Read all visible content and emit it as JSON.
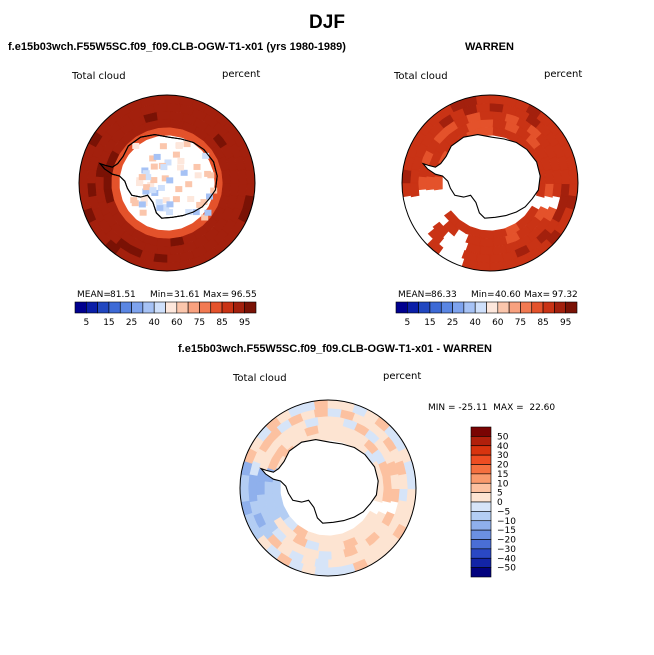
{
  "figure_title": "DJF",
  "chart_data": [
    {
      "type": "heatmap",
      "projection": "south-polar-stereographic",
      "title": "f.e15b03wch.F55W5SC.f09_f09.CLB-OGW-T1-x01 (yrs 1980-1989)",
      "field": "Total cloud",
      "units": "percent",
      "stats": {
        "mean": "81.51",
        "min": "31.61",
        "max": "96.55",
        "mean_label": "MEAN=",
        "min_label": "Min=",
        "max_label": "Max="
      },
      "levels": [
        5,
        10,
        15,
        20,
        25,
        30,
        40,
        50,
        60,
        70,
        75,
        80,
        85,
        90,
        95
      ],
      "tick_labels": [
        "5",
        "15",
        "25",
        "40",
        "60",
        "75",
        "85",
        "95"
      ],
      "colors": [
        "#00008f",
        "#0a1ea8",
        "#2147c0",
        "#3d6ad6",
        "#5a86e3",
        "#7ea3ee",
        "#a6c2f5",
        "#cfe0fb",
        "#fde7dc",
        "#fbc6ac",
        "#f8a17f",
        "#f27a52",
        "#e4522b",
        "#c93315",
        "#a3200d",
        "#7a1205"
      ]
    },
    {
      "type": "heatmap",
      "projection": "south-polar-stereographic",
      "title": "WARREN",
      "field": "Total cloud",
      "units": "percent",
      "stats": {
        "mean": "86.33",
        "min": "40.60",
        "max": "97.32",
        "mean_label": "MEAN=",
        "min_label": "Min=",
        "max_label": "Max="
      },
      "levels": [
        5,
        10,
        15,
        20,
        25,
        30,
        40,
        50,
        60,
        70,
        75,
        80,
        85,
        90,
        95
      ],
      "tick_labels": [
        "5",
        "15",
        "25",
        "40",
        "60",
        "75",
        "85",
        "95"
      ],
      "colors": [
        "#00008f",
        "#0a1ea8",
        "#2147c0",
        "#3d6ad6",
        "#5a86e3",
        "#7ea3ee",
        "#a6c2f5",
        "#cfe0fb",
        "#fde7dc",
        "#fbc6ac",
        "#f8a17f",
        "#f27a52",
        "#e4522b",
        "#c93315",
        "#a3200d",
        "#7a1205"
      ]
    },
    {
      "type": "heatmap",
      "projection": "south-polar-stereographic",
      "title": "f.e15b03wch.F55W5SC.f09_f09.CLB-OGW-T1-x01 - WARREN",
      "field": "Total cloud",
      "units": "percent",
      "stats_text": "MIN = -25.11  MAX =  22.60",
      "levels": [
        -50,
        -40,
        -30,
        -20,
        -15,
        -10,
        -5,
        0,
        5,
        10,
        15,
        20,
        30,
        40,
        50
      ],
      "tick_labels": [
        "50",
        "40",
        "30",
        "20",
        "15",
        "10",
        "5",
        "0",
        "−5",
        "−10",
        "−15",
        "−20",
        "−30",
        "−40",
        "−50"
      ],
      "colors": [
        "#7a0403",
        "#b1200c",
        "#d8340f",
        "#ee4d22",
        "#f5703f",
        "#f99a6c",
        "#fcc1a0",
        "#fde4d2",
        "#d6e4f8",
        "#b3cdf3",
        "#8fb0ec",
        "#6b90e2",
        "#4a6ed6",
        "#2a48c4",
        "#1224a6",
        "#02027e"
      ]
    }
  ]
}
